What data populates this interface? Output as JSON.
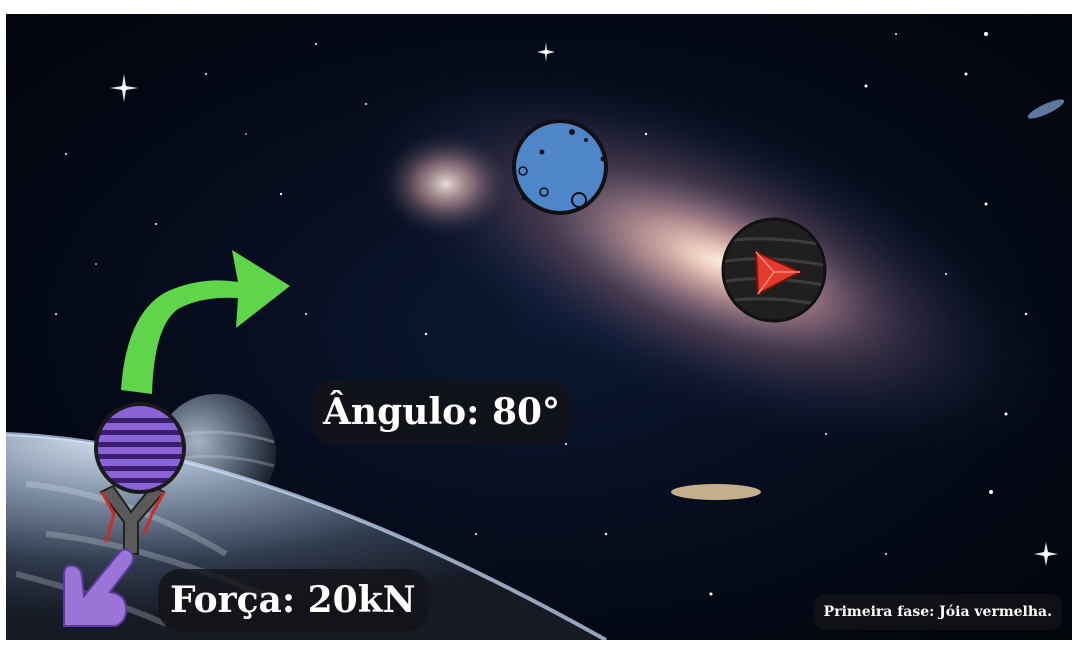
{
  "hud": {
    "angle_text": "Ângulo: 80°",
    "force_text": "Força: 20kN",
    "phase_text": "Primeira fase: Jóia vermelha."
  },
  "game_state": {
    "angle_degrees": 80,
    "force_kN": 20
  },
  "objects": {
    "player_ball": "striped-purple-ball",
    "launcher": "slingshot",
    "target_planet": "blue-cratered-planet",
    "gem_planet": "black-planet-red-gem",
    "aim_arrow": "green-curved-arrow",
    "pointer": "pointing-hand-icon"
  },
  "colors": {
    "space": "#050a18",
    "aim_arrow": "#5fd54a",
    "ball": "#8a63d6",
    "target_planet": "#4f86c9",
    "gem_planet": "#1f1f1f",
    "gem": "#e23b2e",
    "hand": "#9b74d8",
    "label_bg": "#141418",
    "label_text": "#ffffff"
  }
}
